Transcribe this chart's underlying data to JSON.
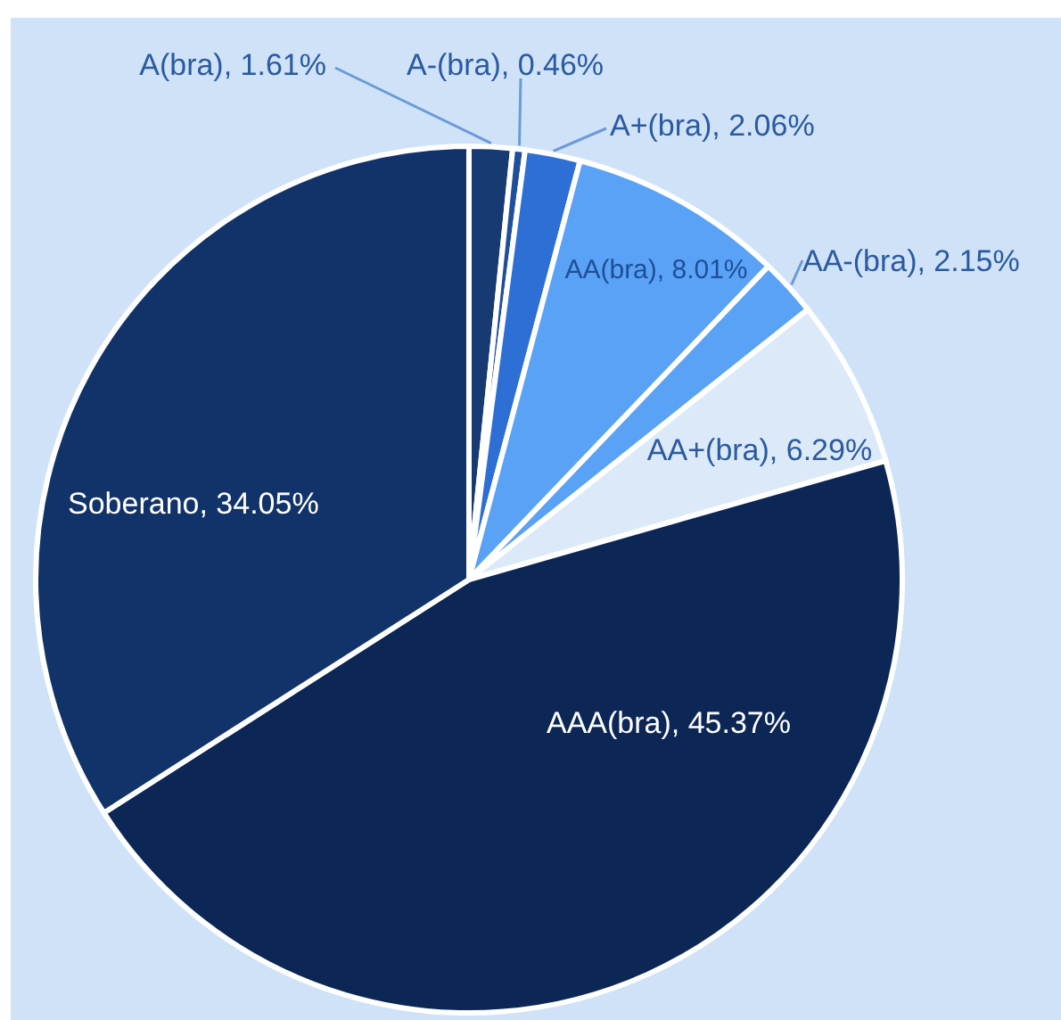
{
  "chart_data": {
    "type": "pie",
    "categories": [
      "A(bra)",
      "A-(bra)",
      "A+(bra)",
      "AA(bra)",
      "AA-(bra)",
      "AA+(bra)",
      "AAA(bra)",
      "Soberano"
    ],
    "values": [
      1.61,
      0.46,
      2.06,
      8.01,
      2.15,
      6.29,
      45.37,
      34.05
    ],
    "value_labels": [
      "1.61%",
      "0.46%",
      "2.06%",
      "8.01%",
      "2.15%",
      "6.29%",
      "45.37%",
      "34.05%"
    ],
    "colors": [
      "#173a73",
      "#1f4e9a",
      "#2e6fd6",
      "#5aa2f5",
      "#5aa2f5",
      "#dce9f8",
      "#0c2656",
      "#12336a"
    ]
  }
}
